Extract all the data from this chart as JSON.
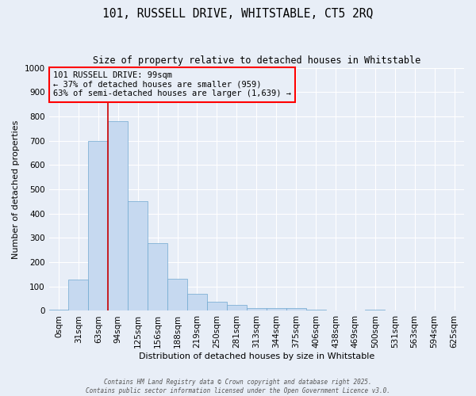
{
  "title1": "101, RUSSELL DRIVE, WHITSTABLE, CT5 2RQ",
  "title2": "Size of property relative to detached houses in Whitstable",
  "xlabel": "Distribution of detached houses by size in Whitstable",
  "ylabel": "Number of detached properties",
  "bar_labels": [
    "0sqm",
    "31sqm",
    "63sqm",
    "94sqm",
    "125sqm",
    "156sqm",
    "188sqm",
    "219sqm",
    "250sqm",
    "281sqm",
    "313sqm",
    "344sqm",
    "375sqm",
    "406sqm",
    "438sqm",
    "469sqm",
    "500sqm",
    "531sqm",
    "563sqm",
    "594sqm",
    "625sqm"
  ],
  "bar_values": [
    5,
    130,
    700,
    780,
    450,
    280,
    133,
    70,
    38,
    25,
    12,
    12,
    10,
    5,
    0,
    0,
    5,
    0,
    0,
    0,
    0
  ],
  "bar_color": "#c6d9f0",
  "bar_edge_color": "#6fa8d0",
  "vline_x": 3,
  "vline_color": "#cc0000",
  "ylim": [
    0,
    1000
  ],
  "yticks": [
    0,
    100,
    200,
    300,
    400,
    500,
    600,
    700,
    800,
    900,
    1000
  ],
  "annotation_text": "101 RUSSELL DRIVE: 99sqm\n← 37% of detached houses are smaller (959)\n63% of semi-detached houses are larger (1,639) →",
  "footer1": "Contains HM Land Registry data © Crown copyright and database right 2025.",
  "footer2": "Contains public sector information licensed under the Open Government Licence v3.0.",
  "bg_color": "#e8eef7",
  "grid_color": "#ffffff"
}
